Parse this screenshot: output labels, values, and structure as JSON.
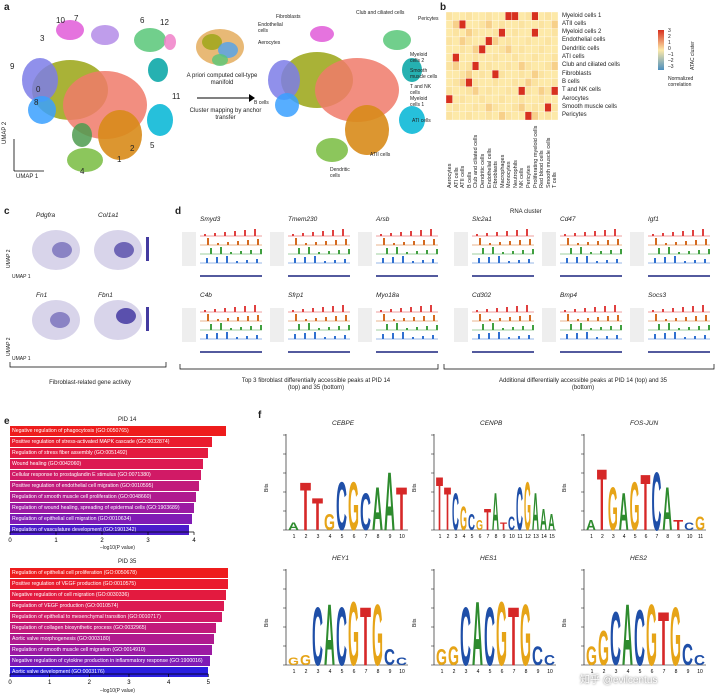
{
  "panel_labels": {
    "a": "a",
    "b": "b",
    "c": "c",
    "d": "d",
    "e": "e",
    "f": "f"
  },
  "panel_a": {
    "cluster_numbers": [
      "10",
      "7",
      "6",
      "12",
      "3",
      "9",
      "0",
      "8",
      "1",
      "2",
      "5",
      "4",
      "11"
    ],
    "axis_y": "UMAP 2",
    "axis_x": "UMAP 1",
    "inset_caption": "A priori computed cell-type manifold",
    "arrow_caption": "Cluster mapping by anchor transfer",
    "right_labels": [
      "Fibroblasts",
      "Endothelial cells",
      "Aerocytes",
      "Club and ciliated cells",
      "Pericytes",
      "Myeloid cells 2",
      "Smooth muscle cells",
      "T and NK cells",
      "B cells",
      "Myeloid cells 1",
      "ATI cells",
      "ATII cells",
      "Dendritic cells"
    ]
  },
  "panel_b": {
    "rows": [
      "Myeloid cells 1",
      "ATII cells",
      "Myeloid cells 2",
      "Endothelial cells",
      "Dendritic cells",
      "ATI cells",
      "Club and ciliated cells",
      "Fibroblasts",
      "B cells",
      "T and NK cells",
      "Aerocytes",
      "Smooth muscle cells",
      "Pericytes"
    ],
    "cols": [
      "Aerocytes",
      "ATI cells",
      "ATII cells",
      "B cells",
      "Club and ciliated cells",
      "Dendritic cells",
      "Endothelial cells",
      "Fibroblasts",
      "Macrophages",
      "Monocytes",
      "Neutrophils",
      "NK cells",
      "Pericytes",
      "Proliferating myeloid cells",
      "Red blood cells",
      "Smooth muscle cells",
      "T cells"
    ],
    "legend_ticks": [
      "3",
      "2",
      "1",
      "0",
      "–1",
      "–2",
      "–3"
    ],
    "legend_title": "ATAC cluster",
    "legend_label": "Normalized correlation",
    "colors": {
      "high": "#d7301f",
      "mid": "#fde9a8",
      "low": "#4c8fbe"
    }
  },
  "panel_c": {
    "genes": [
      "Pdgfra",
      "Col1a1",
      "Fn1",
      "Fbn1"
    ],
    "axis_y": "UMAP 2",
    "axis_x": "UMAP 1",
    "caption": "Fibroblast-related gene activity"
  },
  "panel_d": {
    "cluster_title": "RNA cluster",
    "genes_top": [
      "Smyd3",
      "Tmem230",
      "Arsb",
      "Slc2a1",
      "Cd47",
      "Igf1"
    ],
    "genes_bottom": [
      "C4b",
      "Sfrp1",
      "Myo18a",
      "Cd302",
      "Bmp4",
      "Socs3"
    ],
    "caption_left": "Top 3 fibroblast differentially accessible peaks at PID 14 (top) and 35 (bottom)",
    "caption_right": "Additional differentially accessible peaks at PID 14 (top) and 35 (bottom)"
  },
  "panel_e": {
    "pid14": {
      "title": "PID 14",
      "xlabel": "–log10(P value)",
      "ticks": [
        "0",
        "1",
        "2",
        "3",
        "4"
      ],
      "bars": [
        {
          "label": "Negative regulation of phagocytosis (GO:0050765)",
          "value": 4.7,
          "color": "#ee1c1c"
        },
        {
          "label": "Positive regulation of stress-activated MAPK cascade (GO:0032874)",
          "value": 4.4,
          "color": "#ea1b2e"
        },
        {
          "label": "Regulation of stress fiber assembly (GO:0051492)",
          "value": 4.3,
          "color": "#e31a3f"
        },
        {
          "label": "Wound healing (GO:0042060)",
          "value": 4.2,
          "color": "#dc1a52"
        },
        {
          "label": "Cellular response to prostaglandin E stimulus (GO:0071380)",
          "value": 4.15,
          "color": "#d11a66"
        },
        {
          "label": "Positive regulation of endothelial cell migration (GO:0010595)",
          "value": 4.1,
          "color": "#c21a7b"
        },
        {
          "label": "Regulation of smooth muscle cell proliferation (GO:0048660)",
          "value": 4.05,
          "color": "#b01a8f"
        },
        {
          "label": "Regulation of wound healing, spreading of epidermal cells (GO:1903689)",
          "value": 4.0,
          "color": "#9c1aa3"
        },
        {
          "label": "Regulation of epithelial cell migration (GO:0010634)",
          "value": 3.95,
          "color": "#801bb5"
        },
        {
          "label": "Regulation of vasculature development (GO:1901342)",
          "value": 3.9,
          "color": "#4b1ccc"
        }
      ]
    },
    "pid35": {
      "title": "PID 35",
      "xlabel": "–log10(P value)",
      "ticks": [
        "0",
        "1",
        "2",
        "3",
        "4",
        "5"
      ],
      "bars": [
        {
          "label": "Regulation of epithelial cell proliferation (GO:0050678)",
          "value": 5.5,
          "color": "#ee1c1c"
        },
        {
          "label": "Positive regulation of VEGF production (GO:0010575)",
          "value": 5.5,
          "color": "#ea1b2e"
        },
        {
          "label": "Negative regulation of cell migration (GO:0030336)",
          "value": 5.45,
          "color": "#e31a3f"
        },
        {
          "label": "Regulation of VEGF production (GO:0010574)",
          "value": 5.4,
          "color": "#dc1a52"
        },
        {
          "label": "Regulation of epithelial to mesenchymal transition (GO:0010717)",
          "value": 5.35,
          "color": "#d11a66"
        },
        {
          "label": "Regulation of collagen biosynthetic process (GO:0032965)",
          "value": 5.2,
          "color": "#c21a7b"
        },
        {
          "label": "Aortic valve morphogenesis (GO:0003180)",
          "value": 5.15,
          "color": "#b01a8f"
        },
        {
          "label": "Regulation of smooth muscle cell migration (GO:0014910)",
          "value": 5.1,
          "color": "#9c1aa3"
        },
        {
          "label": "Negative regulation of cytokine production in inflammatory response (GO:1900016)",
          "value": 5.05,
          "color": "#801bb5"
        },
        {
          "label": "Aortic valve development (GO:0003176)",
          "value": 5.0,
          "color": "#2a1ee0"
        }
      ]
    }
  },
  "panel_f": {
    "ylabel": "Bits",
    "motifs": [
      {
        "name": "CEBPE",
        "positions": [
          "1",
          "2",
          "3",
          "4",
          "5",
          "6",
          "7",
          "8",
          "9",
          "10"
        ]
      },
      {
        "name": "CENPB",
        "positions": [
          "1",
          "2",
          "3",
          "4",
          "5",
          "6",
          "7",
          "8",
          "9",
          "10",
          "11",
          "12",
          "13",
          "14",
          "15"
        ]
      },
      {
        "name": "FOS-JUN",
        "positions": [
          "1",
          "2",
          "3",
          "4",
          "5",
          "6",
          "7",
          "8",
          "9",
          "10",
          "11"
        ]
      },
      {
        "name": "HEY1",
        "positions": [
          "1",
          "2",
          "3",
          "4",
          "5",
          "6",
          "7",
          "8",
          "9",
          "10"
        ]
      },
      {
        "name": "HES1",
        "positions": [
          "1",
          "2",
          "3",
          "4",
          "5",
          "6",
          "7",
          "8",
          "9",
          "10"
        ]
      },
      {
        "name": "HES2",
        "positions": [
          "1",
          "2",
          "3",
          "4",
          "5",
          "6",
          "7",
          "8",
          "9",
          "10"
        ]
      }
    ],
    "yticks": [
      "0",
      "0.5",
      "1.0",
      "1.5",
      "2.0",
      "2.5"
    ],
    "watermark": "知乎 @evilcentus"
  }
}
